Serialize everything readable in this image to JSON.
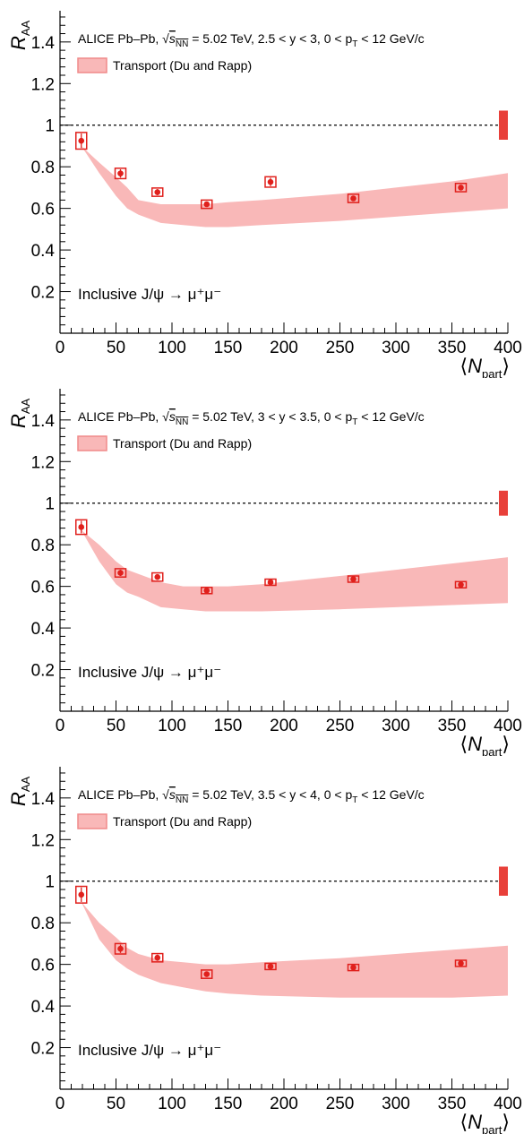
{
  "chart_data": [
    {
      "type": "scatter",
      "title": "",
      "xlabel_symbol": "N",
      "xlabel_sub": "part",
      "ylabel_symbol": "R",
      "ylabel_sub": "AA",
      "xlim": [
        0,
        400
      ],
      "ylim": [
        0,
        1.55
      ],
      "xticks": [
        0,
        50,
        100,
        150,
        200,
        250,
        300,
        350,
        400
      ],
      "yticks": [
        0.2,
        0.4,
        0.6,
        0.8,
        1,
        1.2,
        1.4
      ],
      "info": {
        "prefix": "ALICE Pb–Pb, ",
        "sqrt": "s",
        "sqrt_sub": "NN",
        "rest": " = 5.02 TeV, 2.5 < y < 3, 0 < p",
        "pt_sub": "T",
        "tail": " < 12 GeV/c"
      },
      "legend": {
        "label": "Transport (Du and Rapp)"
      },
      "process": "Inclusive J/ψ → μ⁺μ⁻",
      "reference_line": 1,
      "global_uncertainty": [
        0.93,
        1.07
      ],
      "series": [
        {
          "name": "ALICE Pb–Pb",
          "x": [
            19,
            54,
            87,
            131,
            188,
            262,
            358
          ],
          "y": [
            0.925,
            0.768,
            0.678,
            0.62,
            0.727,
            0.648,
            0.7
          ],
          "stat": [
            0.035,
            0.02,
            0.015,
            0.012,
            0.02,
            0.012,
            0.012
          ],
          "syst": [
            0.04,
            0.025,
            0.02,
            0.02,
            0.025,
            0.02,
            0.02
          ]
        }
      ],
      "band": {
        "name": "Transport (Du and Rapp)",
        "x": [
          19,
          35,
          50,
          60,
          70,
          90,
          110,
          130,
          150,
          180,
          250,
          300,
          350,
          400
        ],
        "lo": [
          0.9,
          0.77,
          0.66,
          0.6,
          0.57,
          0.53,
          0.52,
          0.51,
          0.51,
          0.52,
          0.54,
          0.56,
          0.58,
          0.6
        ],
        "hi": [
          0.9,
          0.82,
          0.75,
          0.7,
          0.64,
          0.62,
          0.62,
          0.62,
          0.63,
          0.64,
          0.67,
          0.7,
          0.73,
          0.77
        ]
      }
    },
    {
      "type": "scatter",
      "title": "",
      "xlabel_symbol": "N",
      "xlabel_sub": "part",
      "ylabel_symbol": "R",
      "ylabel_sub": "AA",
      "xlim": [
        0,
        400
      ],
      "ylim": [
        0,
        1.55
      ],
      "xticks": [
        0,
        50,
        100,
        150,
        200,
        250,
        300,
        350,
        400
      ],
      "yticks": [
        0.2,
        0.4,
        0.6,
        0.8,
        1,
        1.2,
        1.4
      ],
      "info": {
        "prefix": "ALICE Pb–Pb, ",
        "sqrt": "s",
        "sqrt_sub": "NN",
        "rest": " = 5.02 TeV, 3 < y < 3.5, 0 < p",
        "pt_sub": "T",
        "tail": " < 12 GeV/c"
      },
      "legend": {
        "label": "Transport (Du and Rapp)"
      },
      "process": "Inclusive J/ψ → μ⁺μ⁻",
      "reference_line": 1,
      "global_uncertainty": [
        0.94,
        1.06
      ],
      "series": [
        {
          "name": "ALICE Pb–Pb",
          "x": [
            19,
            54,
            87,
            131,
            188,
            262,
            358
          ],
          "y": [
            0.885,
            0.665,
            0.645,
            0.58,
            0.62,
            0.635,
            0.608
          ],
          "stat": [
            0.03,
            0.015,
            0.012,
            0.01,
            0.01,
            0.01,
            0.01
          ],
          "syst": [
            0.035,
            0.02,
            0.02,
            0.015,
            0.015,
            0.015,
            0.015
          ]
        }
      ],
      "band": {
        "name": "Transport (Du and Rapp)",
        "x": [
          19,
          35,
          50,
          60,
          70,
          90,
          110,
          130,
          150,
          180,
          250,
          300,
          350,
          400
        ],
        "lo": [
          0.87,
          0.72,
          0.61,
          0.57,
          0.55,
          0.5,
          0.49,
          0.48,
          0.48,
          0.48,
          0.49,
          0.5,
          0.51,
          0.52
        ],
        "hi": [
          0.87,
          0.8,
          0.72,
          0.68,
          0.66,
          0.62,
          0.6,
          0.6,
          0.6,
          0.61,
          0.65,
          0.68,
          0.71,
          0.74
        ]
      }
    },
    {
      "type": "scatter",
      "title": "",
      "xlabel_symbol": "N",
      "xlabel_sub": "part",
      "ylabel_symbol": "R",
      "ylabel_sub": "AA",
      "xlim": [
        0,
        400
      ],
      "ylim": [
        0,
        1.55
      ],
      "xticks": [
        0,
        50,
        100,
        150,
        200,
        250,
        300,
        350,
        400
      ],
      "yticks": [
        0.2,
        0.4,
        0.6,
        0.8,
        1,
        1.2,
        1.4
      ],
      "info": {
        "prefix": "ALICE Pb–Pb, ",
        "sqrt": "s",
        "sqrt_sub": "NN",
        "rest": " = 5.02 TeV, 3.5 < y < 4, 0 < p",
        "pt_sub": "T",
        "tail": " < 12 GeV/c"
      },
      "legend": {
        "label": "Transport (Du and Rapp)"
      },
      "process": "Inclusive J/ψ → μ⁺μ⁻",
      "reference_line": 1,
      "global_uncertainty": [
        0.93,
        1.07
      ],
      "series": [
        {
          "name": "ALICE Pb–Pb",
          "x": [
            19,
            54,
            87,
            131,
            188,
            262,
            358
          ],
          "y": [
            0.935,
            0.675,
            0.632,
            0.553,
            0.59,
            0.585,
            0.605
          ],
          "stat": [
            0.035,
            0.02,
            0.015,
            0.012,
            0.01,
            0.01,
            0.01
          ],
          "syst": [
            0.04,
            0.025,
            0.02,
            0.02,
            0.015,
            0.015,
            0.015
          ]
        }
      ],
      "band": {
        "name": "Transport (Du and Rapp)",
        "x": [
          19,
          35,
          50,
          60,
          70,
          90,
          110,
          130,
          150,
          180,
          250,
          300,
          350,
          400
        ],
        "lo": [
          0.9,
          0.72,
          0.62,
          0.58,
          0.55,
          0.51,
          0.49,
          0.47,
          0.46,
          0.45,
          0.44,
          0.44,
          0.44,
          0.45
        ],
        "hi": [
          0.9,
          0.8,
          0.73,
          0.68,
          0.65,
          0.62,
          0.61,
          0.6,
          0.6,
          0.61,
          0.63,
          0.65,
          0.67,
          0.69
        ]
      }
    }
  ],
  "colors": {
    "marker": "#e0201c",
    "band": "#f9b8b8",
    "band_stroke": "#f08a8a",
    "global": "#e8403a"
  }
}
